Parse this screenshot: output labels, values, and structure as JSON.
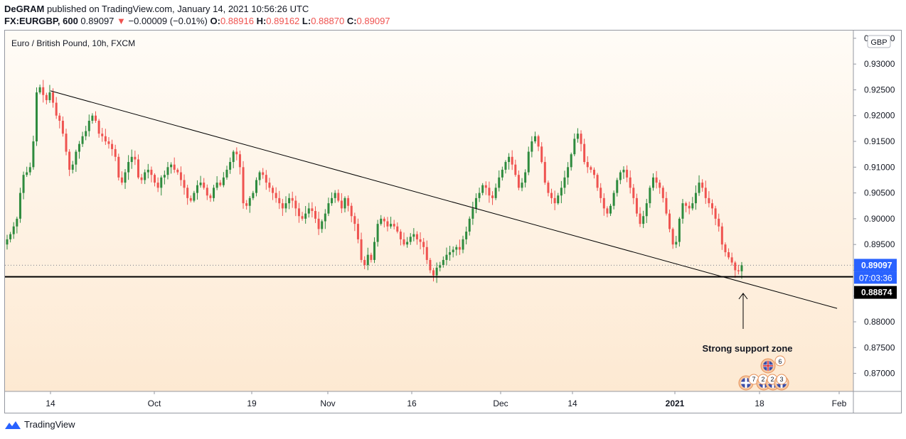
{
  "header": {
    "publisher": "DeGRAM",
    "published_text": " published on TradingView.com, January 14, 2021 10:56:26 UTC",
    "symbol": "FX:EURGBP, 600",
    "last": "0.89097",
    "arrow": "▼",
    "change": "−0.00009 (−0.01%)",
    "o_label": "O:",
    "o_value": "0.88916",
    "h_label": "H:",
    "h_value": "0.89162",
    "l_label": "L:",
    "l_value": "0.88870",
    "c_label": "C:",
    "c_value": "0.89097"
  },
  "footer": {
    "brand": "TradingView"
  },
  "colors": {
    "up": "#26a69a",
    "up_candle": "#2e8b3e",
    "down": "#ef5350",
    "price_label": "#2962ff",
    "bg_top": "#fffcf7",
    "bg_bottom": "#fde9d2"
  },
  "chart_data": {
    "type": "candlestick",
    "title": "Euro / British Pound, 10h, FXCM",
    "currency": "GBP",
    "y_ticks": [
      "0.93500",
      "0.93000",
      "0.92500",
      "0.92000",
      "0.91500",
      "0.91000",
      "0.90500",
      "0.90000",
      "0.89500",
      "0.89000",
      "0.88500",
      "0.88000",
      "0.87500",
      "0.87000"
    ],
    "ylim": [
      0.8665,
      0.9365
    ],
    "x_ticks": [
      "14",
      "Oct",
      "19",
      "Nov",
      "16",
      "Dec",
      "14",
      "2021",
      "18",
      "Feb"
    ],
    "last_price": "0.89097",
    "countdown": "07:03:36",
    "support_level": "0.88874",
    "support_value": 0.88874,
    "annotation": "Strong support zone",
    "event_counts": [
      "6",
      "7",
      "2",
      "2",
      "3"
    ],
    "trendline": {
      "from": {
        "date": "2020-09-14",
        "price": 0.9248
      },
      "to": {
        "date": "2021-01-31",
        "price": 0.8826
      }
    },
    "candles_close": [
      0.896,
      0.897,
      0.8985,
      0.9,
      0.905,
      0.9085,
      0.909,
      0.91,
      0.915,
      0.9245,
      0.9255,
      0.924,
      0.923,
      0.9245,
      0.9225,
      0.92,
      0.919,
      0.9165,
      0.913,
      0.9095,
      0.9105,
      0.913,
      0.9145,
      0.916,
      0.917,
      0.919,
      0.92,
      0.919,
      0.9165,
      0.916,
      0.915,
      0.9145,
      0.9135,
      0.912,
      0.908,
      0.907,
      0.909,
      0.911,
      0.912,
      0.9115,
      0.908,
      0.9075,
      0.909,
      0.9095,
      0.9085,
      0.907,
      0.906,
      0.908,
      0.9085,
      0.91,
      0.9105,
      0.9095,
      0.909,
      0.9075,
      0.906,
      0.904,
      0.9035,
      0.905,
      0.9065,
      0.907,
      0.906,
      0.9045,
      0.904,
      0.906,
      0.907,
      0.9065,
      0.908,
      0.9095,
      0.911,
      0.913,
      0.9125,
      0.91,
      0.903,
      0.9025,
      0.904,
      0.905,
      0.9075,
      0.909,
      0.9085,
      0.907,
      0.906,
      0.905,
      0.904,
      0.903,
      0.902,
      0.903,
      0.904,
      0.9035,
      0.902,
      0.9005,
      0.9,
      0.901,
      0.902,
      0.9015,
      0.9,
      0.898,
      0.8995,
      0.901,
      0.903,
      0.904,
      0.905,
      0.9035,
      0.902,
      0.904,
      0.9025,
      0.9005,
      0.899,
      0.896,
      0.892,
      0.891,
      0.893,
      0.892,
      0.8955,
      0.899,
      0.9,
      0.8995,
      0.8985,
      0.899,
      0.8985,
      0.8975,
      0.896,
      0.895,
      0.8955,
      0.8965,
      0.897,
      0.896,
      0.8955,
      0.8945,
      0.892,
      0.89,
      0.889,
      0.8905,
      0.891,
      0.892,
      0.893,
      0.8935,
      0.894,
      0.8945,
      0.894,
      0.896,
      0.8975,
      0.9,
      0.902,
      0.904,
      0.905,
      0.9065,
      0.906,
      0.9045,
      0.904,
      0.906,
      0.908,
      0.9095,
      0.911,
      0.912,
      0.9105,
      0.9085,
      0.906,
      0.907,
      0.909,
      0.913,
      0.915,
      0.916,
      0.914,
      0.911,
      0.907,
      0.905,
      0.904,
      0.903,
      0.9045,
      0.906,
      0.908,
      0.91,
      0.9125,
      0.9155,
      0.9165,
      0.9145,
      0.911,
      0.91,
      0.9095,
      0.9085,
      0.906,
      0.904,
      0.902,
      0.901,
      0.9025,
      0.905,
      0.9075,
      0.909,
      0.9095,
      0.908,
      0.906,
      0.904,
      0.901,
      0.899,
      0.9005,
      0.903,
      0.906,
      0.908,
      0.907,
      0.906,
      0.904,
      0.901,
      0.898,
      0.895,
      0.8955,
      0.9,
      0.903,
      0.9025,
      0.902,
      0.903,
      0.905,
      0.907,
      0.906,
      0.904,
      0.903,
      0.902,
      0.9,
      0.8985,
      0.895,
      0.8935,
      0.8925,
      0.8915,
      0.89,
      0.8898,
      0.891
    ]
  }
}
